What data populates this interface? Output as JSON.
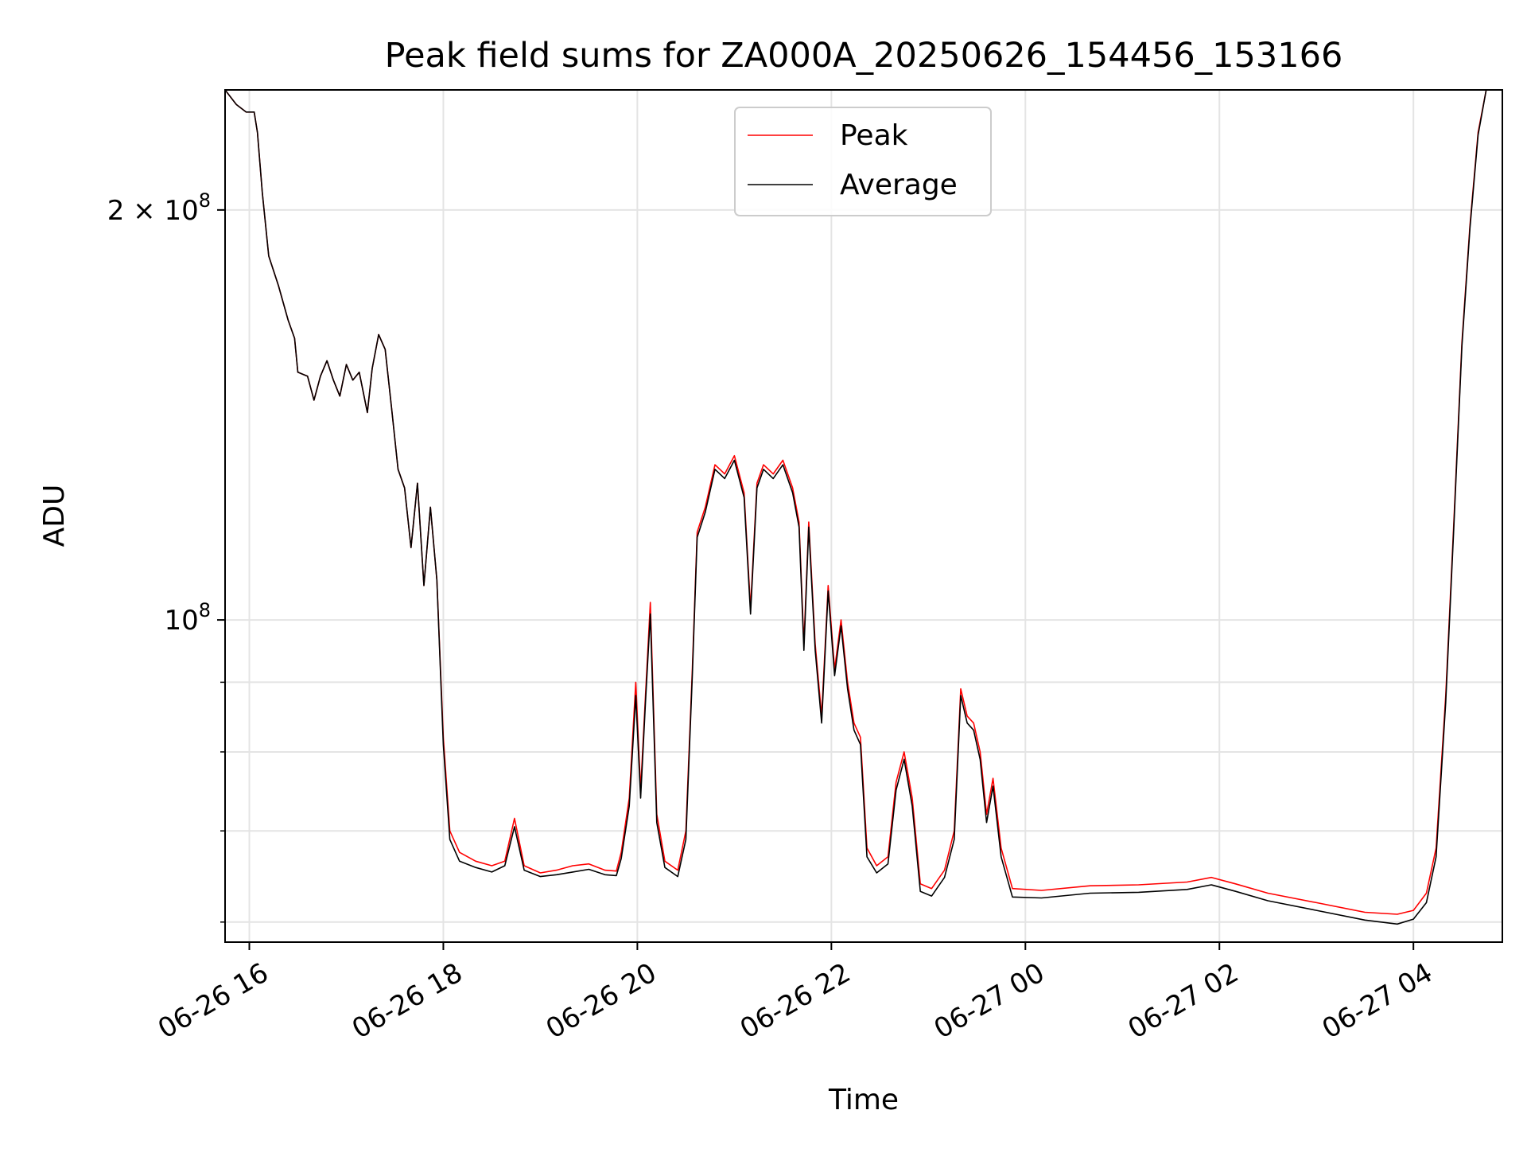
{
  "chart_data": {
    "type": "line",
    "title": "Peak field sums for ZA000A_20250626_154456_153166",
    "xlabel": "Time",
    "ylabel": "ADU",
    "y_scale": "log",
    "x_unit": "datetime",
    "xlim": [
      "2025-06-26 15:45",
      "2025-06-27 04:55"
    ],
    "ylim": [
      58000000,
      245000000
    ],
    "x_tick_labels": [
      "06-26 16",
      "06-26 18",
      "06-26 20",
      "06-26 22",
      "06-27 00",
      "06-27 02",
      "06-27 04"
    ],
    "x_tick_values": [
      "2025-06-26 16:00",
      "2025-06-26 18:00",
      "2025-06-26 20:00",
      "2025-06-26 22:00",
      "2025-06-27 00:00",
      "2025-06-27 02:00",
      "2025-06-27 04:00"
    ],
    "y_major_ticks": [
      {
        "value": 100000000,
        "base": "10",
        "exp": "8",
        "coef": ""
      },
      {
        "value": 200000000,
        "base": "10",
        "exp": "8",
        "coef": "2 × "
      }
    ],
    "y_minor_ticks": [
      60000000,
      70000000,
      80000000,
      90000000
    ],
    "grid": true,
    "legend_position": "top-center",
    "series": [
      {
        "name": "Peak",
        "color": "#ff0000",
        "points": [
          [
            "2025-06-26 15:45",
            245000000
          ],
          [
            "2025-06-26 15:52",
            239000000
          ],
          [
            "2025-06-26 15:58",
            236000000
          ],
          [
            "2025-06-26 16:03",
            236000000
          ],
          [
            "2025-06-26 16:05",
            228000000
          ],
          [
            "2025-06-26 16:08",
            206000000
          ],
          [
            "2025-06-26 16:12",
            185000000
          ],
          [
            "2025-06-26 16:18",
            176000000
          ],
          [
            "2025-06-26 16:24",
            166000000
          ],
          [
            "2025-06-26 16:28",
            161000000
          ],
          [
            "2025-06-26 16:30",
            152000000
          ],
          [
            "2025-06-26 16:36",
            151000000
          ],
          [
            "2025-06-26 16:40",
            145000000
          ],
          [
            "2025-06-26 16:44",
            151000000
          ],
          [
            "2025-06-26 16:48",
            155000000
          ],
          [
            "2025-06-26 16:52",
            150000000
          ],
          [
            "2025-06-26 16:56",
            146000000
          ],
          [
            "2025-06-26 17:00",
            154000000
          ],
          [
            "2025-06-26 17:04",
            150000000
          ],
          [
            "2025-06-26 17:08",
            152000000
          ],
          [
            "2025-06-26 17:13",
            142000000
          ],
          [
            "2025-06-26 17:16",
            153000000
          ],
          [
            "2025-06-26 17:20",
            162000000
          ],
          [
            "2025-06-26 17:24",
            158000000
          ],
          [
            "2025-06-26 17:28",
            143000000
          ],
          [
            "2025-06-26 17:32",
            129000000
          ],
          [
            "2025-06-26 17:36",
            125000000
          ],
          [
            "2025-06-26 17:40",
            113000000
          ],
          [
            "2025-06-26 17:44",
            126000000
          ],
          [
            "2025-06-26 17:48",
            106000000
          ],
          [
            "2025-06-26 17:52",
            121000000
          ],
          [
            "2025-06-26 17:56",
            107000000
          ],
          [
            "2025-06-26 18:00",
            82000000
          ],
          [
            "2025-06-26 18:04",
            70000000
          ],
          [
            "2025-06-26 18:10",
            67500000
          ],
          [
            "2025-06-26 18:20",
            66500000
          ],
          [
            "2025-06-26 18:30",
            66000000
          ],
          [
            "2025-06-26 18:38",
            66500000
          ],
          [
            "2025-06-26 18:44",
            71500000
          ],
          [
            "2025-06-26 18:50",
            66000000
          ],
          [
            "2025-06-26 19:00",
            65200000
          ],
          [
            "2025-06-26 19:10",
            65500000
          ],
          [
            "2025-06-26 19:20",
            66000000
          ],
          [
            "2025-06-26 19:30",
            66200000
          ],
          [
            "2025-06-26 19:40",
            65500000
          ],
          [
            "2025-06-26 19:47",
            65400000
          ],
          [
            "2025-06-26 19:50",
            67500000
          ],
          [
            "2025-06-26 19:55",
            74000000
          ],
          [
            "2025-06-26 19:59",
            90000000
          ],
          [
            "2025-06-26 20:02",
            75000000
          ],
          [
            "2025-06-26 20:05",
            88000000
          ],
          [
            "2025-06-26 20:08",
            103000000
          ],
          [
            "2025-06-26 20:12",
            72000000
          ],
          [
            "2025-06-26 20:17",
            66500000
          ],
          [
            "2025-06-26 20:25",
            65500000
          ],
          [
            "2025-06-26 20:30",
            70000000
          ],
          [
            "2025-06-26 20:34",
            92000000
          ],
          [
            "2025-06-26 20:37",
            116000000
          ],
          [
            "2025-06-26 20:42",
            121000000
          ],
          [
            "2025-06-26 20:48",
            130000000
          ],
          [
            "2025-06-26 20:54",
            128000000
          ],
          [
            "2025-06-26 21:00",
            132000000
          ],
          [
            "2025-06-26 21:06",
            124000000
          ],
          [
            "2025-06-26 21:10",
            102000000
          ],
          [
            "2025-06-26 21:14",
            126000000
          ],
          [
            "2025-06-26 21:18",
            130000000
          ],
          [
            "2025-06-26 21:24",
            128000000
          ],
          [
            "2025-06-26 21:30",
            131000000
          ],
          [
            "2025-06-26 21:36",
            125000000
          ],
          [
            "2025-06-26 21:40",
            118000000
          ],
          [
            "2025-06-26 21:43",
            96000000
          ],
          [
            "2025-06-26 21:46",
            118000000
          ],
          [
            "2025-06-26 21:50",
            96000000
          ],
          [
            "2025-06-26 21:54",
            85000000
          ],
          [
            "2025-06-26 21:58",
            106000000
          ],
          [
            "2025-06-26 22:02",
            92000000
          ],
          [
            "2025-06-26 22:06",
            100000000
          ],
          [
            "2025-06-26 22:10",
            90000000
          ],
          [
            "2025-06-26 22:14",
            84000000
          ],
          [
            "2025-06-26 22:18",
            82000000
          ],
          [
            "2025-06-26 22:22",
            68000000
          ],
          [
            "2025-06-26 22:28",
            66000000
          ],
          [
            "2025-06-26 22:35",
            67000000
          ],
          [
            "2025-06-26 22:40",
            76000000
          ],
          [
            "2025-06-26 22:45",
            80000000
          ],
          [
            "2025-06-26 22:50",
            74000000
          ],
          [
            "2025-06-26 22:55",
            64000000
          ],
          [
            "2025-06-26 23:02",
            63500000
          ],
          [
            "2025-06-26 23:10",
            65500000
          ],
          [
            "2025-06-26 23:16",
            70000000
          ],
          [
            "2025-06-26 23:20",
            89000000
          ],
          [
            "2025-06-26 23:24",
            85000000
          ],
          [
            "2025-06-26 23:28",
            84000000
          ],
          [
            "2025-06-26 23:32",
            80000000
          ],
          [
            "2025-06-26 23:36",
            72000000
          ],
          [
            "2025-06-26 23:40",
            76500000
          ],
          [
            "2025-06-26 23:45",
            68000000
          ],
          [
            "2025-06-26 23:52",
            63500000
          ],
          [
            "2025-06-27 00:10",
            63300000
          ],
          [
            "2025-06-27 00:40",
            63800000
          ],
          [
            "2025-06-27 01:10",
            63900000
          ],
          [
            "2025-06-27 01:40",
            64200000
          ],
          [
            "2025-06-27 01:55",
            64700000
          ],
          [
            "2025-06-27 02:10",
            64000000
          ],
          [
            "2025-06-27 02:30",
            63000000
          ],
          [
            "2025-06-27 03:00",
            62000000
          ],
          [
            "2025-06-27 03:30",
            61000000
          ],
          [
            "2025-06-27 03:50",
            60800000
          ],
          [
            "2025-06-27 04:00",
            61200000
          ],
          [
            "2025-06-27 04:08",
            63000000
          ],
          [
            "2025-06-27 04:14",
            68000000
          ],
          [
            "2025-06-27 04:20",
            88000000
          ],
          [
            "2025-06-27 04:25",
            118000000
          ],
          [
            "2025-06-27 04:30",
            160000000
          ],
          [
            "2025-06-27 04:35",
            195000000
          ],
          [
            "2025-06-27 04:40",
            228000000
          ],
          [
            "2025-06-27 04:45",
            245000000
          ],
          [
            "2025-06-27 04:55",
            245000000
          ]
        ]
      },
      {
        "name": "Average",
        "color": "#000000",
        "points": [
          [
            "2025-06-26 15:45",
            245000000
          ],
          [
            "2025-06-26 15:52",
            239000000
          ],
          [
            "2025-06-26 15:58",
            236000000
          ],
          [
            "2025-06-26 16:03",
            236000000
          ],
          [
            "2025-06-26 16:05",
            228000000
          ],
          [
            "2025-06-26 16:08",
            206000000
          ],
          [
            "2025-06-26 16:12",
            185000000
          ],
          [
            "2025-06-26 16:18",
            176000000
          ],
          [
            "2025-06-26 16:24",
            166000000
          ],
          [
            "2025-06-26 16:28",
            161000000
          ],
          [
            "2025-06-26 16:30",
            152000000
          ],
          [
            "2025-06-26 16:36",
            151000000
          ],
          [
            "2025-06-26 16:40",
            145000000
          ],
          [
            "2025-06-26 16:44",
            151000000
          ],
          [
            "2025-06-26 16:48",
            155000000
          ],
          [
            "2025-06-26 16:52",
            150000000
          ],
          [
            "2025-06-26 16:56",
            146000000
          ],
          [
            "2025-06-26 17:00",
            154000000
          ],
          [
            "2025-06-26 17:04",
            150000000
          ],
          [
            "2025-06-26 17:08",
            152000000
          ],
          [
            "2025-06-26 17:13",
            142000000
          ],
          [
            "2025-06-26 17:16",
            153000000
          ],
          [
            "2025-06-26 17:20",
            162000000
          ],
          [
            "2025-06-26 17:24",
            158000000
          ],
          [
            "2025-06-26 17:28",
            143000000
          ],
          [
            "2025-06-26 17:32",
            129000000
          ],
          [
            "2025-06-26 17:36",
            125000000
          ],
          [
            "2025-06-26 17:40",
            113000000
          ],
          [
            "2025-06-26 17:44",
            126000000
          ],
          [
            "2025-06-26 17:48",
            106000000
          ],
          [
            "2025-06-26 17:52",
            121000000
          ],
          [
            "2025-06-26 17:56",
            107000000
          ],
          [
            "2025-06-26 18:00",
            81000000
          ],
          [
            "2025-06-26 18:04",
            69000000
          ],
          [
            "2025-06-26 18:10",
            66500000
          ],
          [
            "2025-06-26 18:20",
            65800000
          ],
          [
            "2025-06-26 18:30",
            65300000
          ],
          [
            "2025-06-26 18:38",
            66000000
          ],
          [
            "2025-06-26 18:44",
            70500000
          ],
          [
            "2025-06-26 18:50",
            65500000
          ],
          [
            "2025-06-26 19:00",
            64800000
          ],
          [
            "2025-06-26 19:10",
            65000000
          ],
          [
            "2025-06-26 19:20",
            65300000
          ],
          [
            "2025-06-26 19:30",
            65600000
          ],
          [
            "2025-06-26 19:40",
            65000000
          ],
          [
            "2025-06-26 19:47",
            64900000
          ],
          [
            "2025-06-26 19:50",
            66800000
          ],
          [
            "2025-06-26 19:55",
            73000000
          ],
          [
            "2025-06-26 19:59",
            88000000
          ],
          [
            "2025-06-26 20:02",
            74000000
          ],
          [
            "2025-06-26 20:05",
            87000000
          ],
          [
            "2025-06-26 20:08",
            101000000
          ],
          [
            "2025-06-26 20:12",
            71000000
          ],
          [
            "2025-06-26 20:17",
            65800000
          ],
          [
            "2025-06-26 20:25",
            64800000
          ],
          [
            "2025-06-26 20:30",
            69000000
          ],
          [
            "2025-06-26 20:34",
            91000000
          ],
          [
            "2025-06-26 20:37",
            115000000
          ],
          [
            "2025-06-26 20:42",
            120000000
          ],
          [
            "2025-06-26 20:48",
            129000000
          ],
          [
            "2025-06-26 20:54",
            127000000
          ],
          [
            "2025-06-26 21:00",
            131000000
          ],
          [
            "2025-06-26 21:06",
            123000000
          ],
          [
            "2025-06-26 21:10",
            101000000
          ],
          [
            "2025-06-26 21:14",
            125000000
          ],
          [
            "2025-06-26 21:18",
            129000000
          ],
          [
            "2025-06-26 21:24",
            127000000
          ],
          [
            "2025-06-26 21:30",
            130000000
          ],
          [
            "2025-06-26 21:36",
            124000000
          ],
          [
            "2025-06-26 21:40",
            117000000
          ],
          [
            "2025-06-26 21:43",
            95000000
          ],
          [
            "2025-06-26 21:46",
            117000000
          ],
          [
            "2025-06-26 21:50",
            95000000
          ],
          [
            "2025-06-26 21:54",
            84000000
          ],
          [
            "2025-06-26 21:58",
            105000000
          ],
          [
            "2025-06-26 22:02",
            91000000
          ],
          [
            "2025-06-26 22:06",
            99000000
          ],
          [
            "2025-06-26 22:10",
            89000000
          ],
          [
            "2025-06-26 22:14",
            83000000
          ],
          [
            "2025-06-26 22:18",
            81000000
          ],
          [
            "2025-06-26 22:22",
            67000000
          ],
          [
            "2025-06-26 22:28",
            65200000
          ],
          [
            "2025-06-26 22:35",
            66200000
          ],
          [
            "2025-06-26 22:40",
            75000000
          ],
          [
            "2025-06-26 22:45",
            79000000
          ],
          [
            "2025-06-26 22:50",
            73000000
          ],
          [
            "2025-06-26 22:55",
            63200000
          ],
          [
            "2025-06-26 23:02",
            62700000
          ],
          [
            "2025-06-26 23:10",
            64700000
          ],
          [
            "2025-06-26 23:16",
            69000000
          ],
          [
            "2025-06-26 23:20",
            88000000
          ],
          [
            "2025-06-26 23:24",
            84000000
          ],
          [
            "2025-06-26 23:28",
            83000000
          ],
          [
            "2025-06-26 23:32",
            79000000
          ],
          [
            "2025-06-26 23:36",
            71000000
          ],
          [
            "2025-06-26 23:40",
            75500000
          ],
          [
            "2025-06-26 23:45",
            67000000
          ],
          [
            "2025-06-26 23:52",
            62600000
          ],
          [
            "2025-06-27 00:10",
            62500000
          ],
          [
            "2025-06-27 00:40",
            63000000
          ],
          [
            "2025-06-27 01:10",
            63100000
          ],
          [
            "2025-06-27 01:40",
            63400000
          ],
          [
            "2025-06-27 01:55",
            63900000
          ],
          [
            "2025-06-27 02:10",
            63200000
          ],
          [
            "2025-06-27 02:30",
            62200000
          ],
          [
            "2025-06-27 03:00",
            61200000
          ],
          [
            "2025-06-27 03:30",
            60200000
          ],
          [
            "2025-06-27 03:50",
            59800000
          ],
          [
            "2025-06-27 04:00",
            60300000
          ],
          [
            "2025-06-27 04:08",
            62000000
          ],
          [
            "2025-06-27 04:14",
            67000000
          ],
          [
            "2025-06-27 04:20",
            87000000
          ],
          [
            "2025-06-27 04:25",
            117000000
          ],
          [
            "2025-06-27 04:30",
            159000000
          ],
          [
            "2025-06-27 04:35",
            194000000
          ],
          [
            "2025-06-27 04:40",
            227000000
          ],
          [
            "2025-06-27 04:45",
            245000000
          ],
          [
            "2025-06-27 04:55",
            245000000
          ]
        ]
      }
    ]
  }
}
